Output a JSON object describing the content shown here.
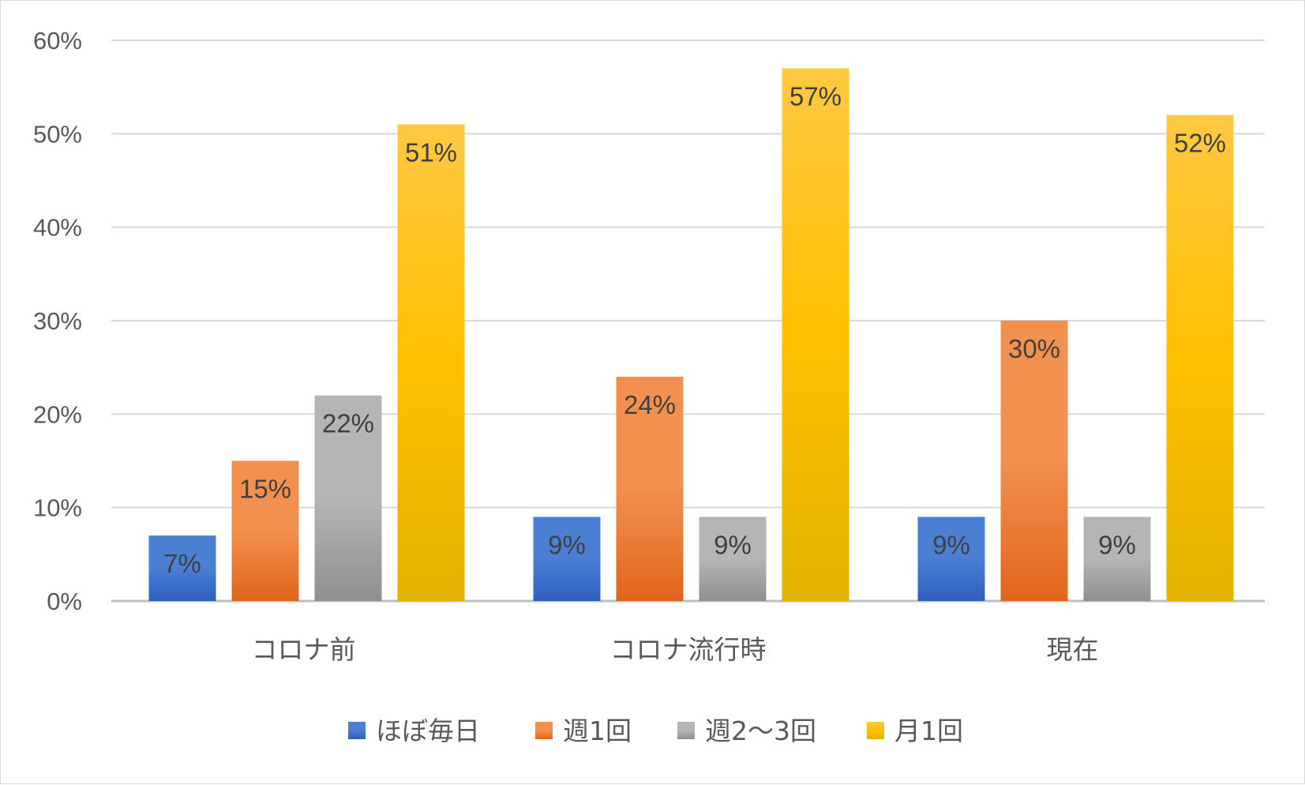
{
  "chart_data": {
    "type": "bar",
    "categories": [
      "コロナ前",
      "コロナ流行時",
      "現在"
    ],
    "series": [
      {
        "name": "ほぼ毎日",
        "values": [
          7,
          9,
          9
        ],
        "labels": [
          "7%",
          "9%",
          "9%"
        ],
        "color_top": "#4a7fd4",
        "color_bottom": "#2e5fbf"
      },
      {
        "name": "週1回",
        "values": [
          15,
          24,
          30
        ],
        "labels": [
          "15%",
          "24%",
          "30%"
        ],
        "color_top": "#f29050",
        "color_bottom": "#e0651b"
      },
      {
        "name": "週2～3回",
        "values": [
          22,
          9,
          9
        ],
        "labels": [
          "22%",
          "9%",
          "9%"
        ],
        "color_top": "#b5b5b5",
        "color_bottom": "#8f8f8f"
      },
      {
        "name": "月1回",
        "values": [
          51,
          57,
          52
        ],
        "labels": [
          "51%",
          "57%",
          "52%"
        ],
        "color_top": "#ffc842",
        "color_bottom": "#e3b200"
      }
    ],
    "ylim": [
      0,
      60
    ],
    "yticks": [
      0,
      10,
      20,
      30,
      40,
      50,
      60
    ],
    "ytick_labels": [
      "0%",
      "10%",
      "20%",
      "30%",
      "40%",
      "50%",
      "60%"
    ],
    "grid": true,
    "legend": "bottom",
    "title": "",
    "xlabel": "",
    "ylabel": ""
  }
}
